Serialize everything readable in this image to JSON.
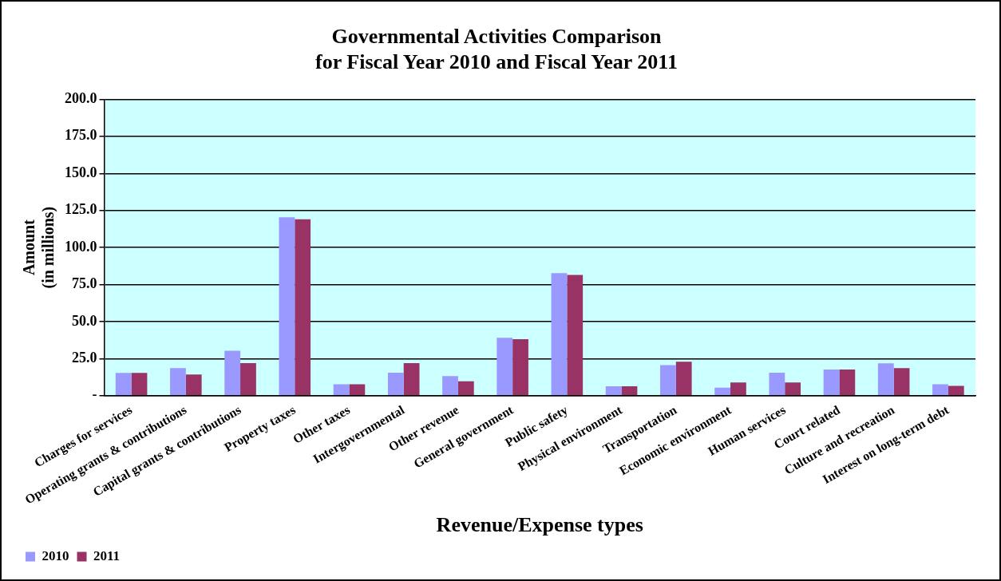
{
  "chart_data": {
    "type": "bar",
    "title": "Governmental Activities Comparison\nfor Fiscal Year 2010 and Fiscal Year 2011",
    "xlabel": "Revenue/Expense types",
    "ylabel": "Amount\n(in millions)",
    "categories": [
      "Charges for services",
      "Operating grants & contributions",
      "Capital grants & contributions",
      "Property taxes",
      "Other taxes",
      "Intergovernmental",
      "Other revenue",
      "General government",
      "Public safety",
      "Physical environment",
      "Transportation",
      "Economic environment",
      "Human services",
      "Court related",
      "Culture and recreation",
      "Interest on long-term debt"
    ],
    "series": [
      {
        "name": "2010",
        "color": "#9999ff",
        "values": [
          15.4,
          18.6,
          30.4,
          120.4,
          7.7,
          15.5,
          13.2,
          39.1,
          82.7,
          6.4,
          20.7,
          5.4,
          15.5,
          17.7,
          21.8,
          7.7
        ]
      },
      {
        "name": "2011",
        "color": "#993366",
        "values": [
          15.4,
          14.3,
          22.0,
          119.0,
          7.7,
          22.0,
          9.8,
          38.2,
          81.5,
          6.4,
          22.9,
          8.9,
          8.9,
          17.7,
          18.6,
          6.6
        ]
      }
    ],
    "ylim": [
      0,
      200
    ],
    "yticks": [
      {
        "value": 0,
        "label": "-"
      },
      {
        "value": 25,
        "label": "25.0"
      },
      {
        "value": 50,
        "label": "50.0"
      },
      {
        "value": 75,
        "label": "75.0"
      },
      {
        "value": 100,
        "label": "100.0"
      },
      {
        "value": 125,
        "label": "125.0"
      },
      {
        "value": 150,
        "label": "150.0"
      },
      {
        "value": 175,
        "label": "175.0"
      },
      {
        "value": 200,
        "label": "200.0"
      }
    ],
    "grid": "y",
    "legend": "bottom left"
  }
}
